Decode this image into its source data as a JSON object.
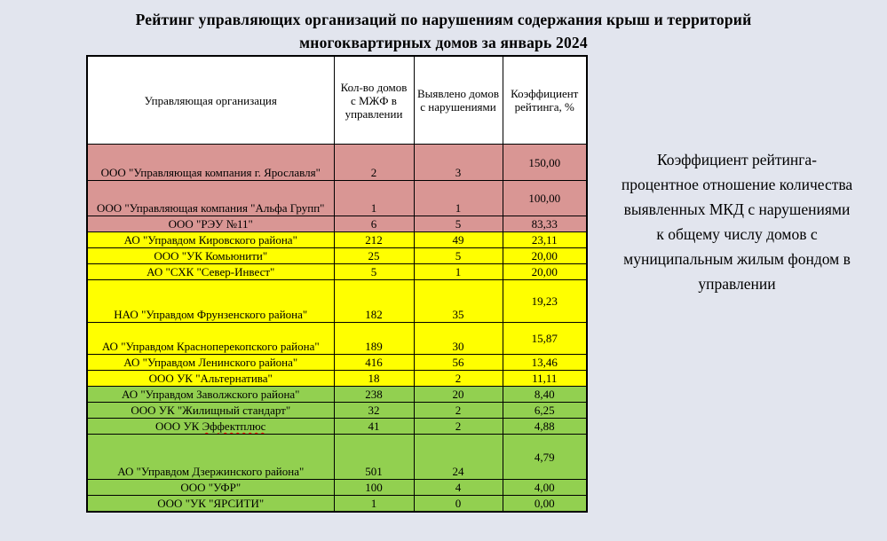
{
  "title": {
    "lines": [
      "Рейтинг управляющих  организаций по нарушениям  содержания крыш  и территорий",
      "многоквартирных  домов  за январь 2024"
    ]
  },
  "table": {
    "column_headers": [
      "Управляющая организация",
      "Кол-во домов с МЖФ в управлении",
      "Выявлено домов с нарушениями",
      "Коэффициент рейтинга, %"
    ],
    "rows": [
      {
        "org": "ООО \"Управляющая компания г. Ярославля\"",
        "homes_count": "2",
        "violations": "3",
        "coefficient": "150,00",
        "band": "red"
      },
      {
        "org": "ООО \"Управляющая компания \"Альфа Групп\"",
        "homes_count": "1",
        "violations": "1",
        "coefficient": "100,00",
        "band": "red"
      },
      {
        "org": "ООО \"РЭУ №11\"",
        "homes_count": "6",
        "violations": "5",
        "coefficient": "83,33",
        "band": "red"
      },
      {
        "org": "АО \"Управдом Кировского района\"",
        "homes_count": "212",
        "violations": "49",
        "coefficient": "23,11",
        "band": "yellow"
      },
      {
        "org": "ООО \"УК Комьюнити\"",
        "homes_count": "25",
        "violations": "5",
        "coefficient": "20,00",
        "band": "yellow"
      },
      {
        "org": "АО \"СХК \"Север-Инвест\"",
        "homes_count": "5",
        "violations": "1",
        "coefficient": "20,00",
        "band": "yellow"
      },
      {
        "org": "НАО \"Управдом Фрунзенского района\"",
        "homes_count": "182",
        "violations": "35",
        "coefficient": "19,23",
        "band": "yellow"
      },
      {
        "org": "АО \"Управдом Красноперекопского района\"",
        "homes_count": "189",
        "violations": "30",
        "coefficient": "15,87",
        "band": "yellow"
      },
      {
        "org": "АО \"Управдом Ленинского района\"",
        "homes_count": "416",
        "violations": "56",
        "coefficient": "13,46",
        "band": "yellow"
      },
      {
        "org": "ООО УК \"Альтернатива\"",
        "homes_count": "18",
        "violations": "2",
        "coefficient": "11,11",
        "band": "yellow"
      },
      {
        "org": "АО \"Управдом Заволжского района\"",
        "homes_count": "238",
        "violations": "20",
        "coefficient": "8,40",
        "band": "green"
      },
      {
        "org": "ООО УК \"Жилищный стандарт\"",
        "homes_count": "32",
        "violations": "2",
        "coefficient": "6,25",
        "band": "green"
      },
      {
        "org": "ООО УК Эффектплюс",
        "homes_count": "41",
        "violations": "2",
        "coefficient": "4,88",
        "band": "green",
        "misspelled_word": "Эффектплюс"
      },
      {
        "org": "АО \"Управдом Дзержинского района\"",
        "homes_count": "501",
        "violations": "24",
        "coefficient": "4,79",
        "band": "green"
      },
      {
        "org": "ООО \"УФР\"",
        "homes_count": "100",
        "violations": "4",
        "coefficient": "4,00",
        "band": "green"
      },
      {
        "org": "ООО \"УК \"ЯРСИТИ\"",
        "homes_count": "1",
        "violations": "0",
        "coefficient": "0,00",
        "band": "green"
      }
    ]
  },
  "note": {
    "lines": [
      "Коэффициент рейтинга-",
      "процентное отношение количества",
      "выявленных  МКД  с нарушениями",
      "к общему  числу домов с",
      "муниципальным жилым фондом в",
      "управлении"
    ]
  },
  "colors": {
    "red": "#d99694",
    "yellow": "#ffff00",
    "green": "#92d050",
    "page_background": "#e2e5ee"
  }
}
